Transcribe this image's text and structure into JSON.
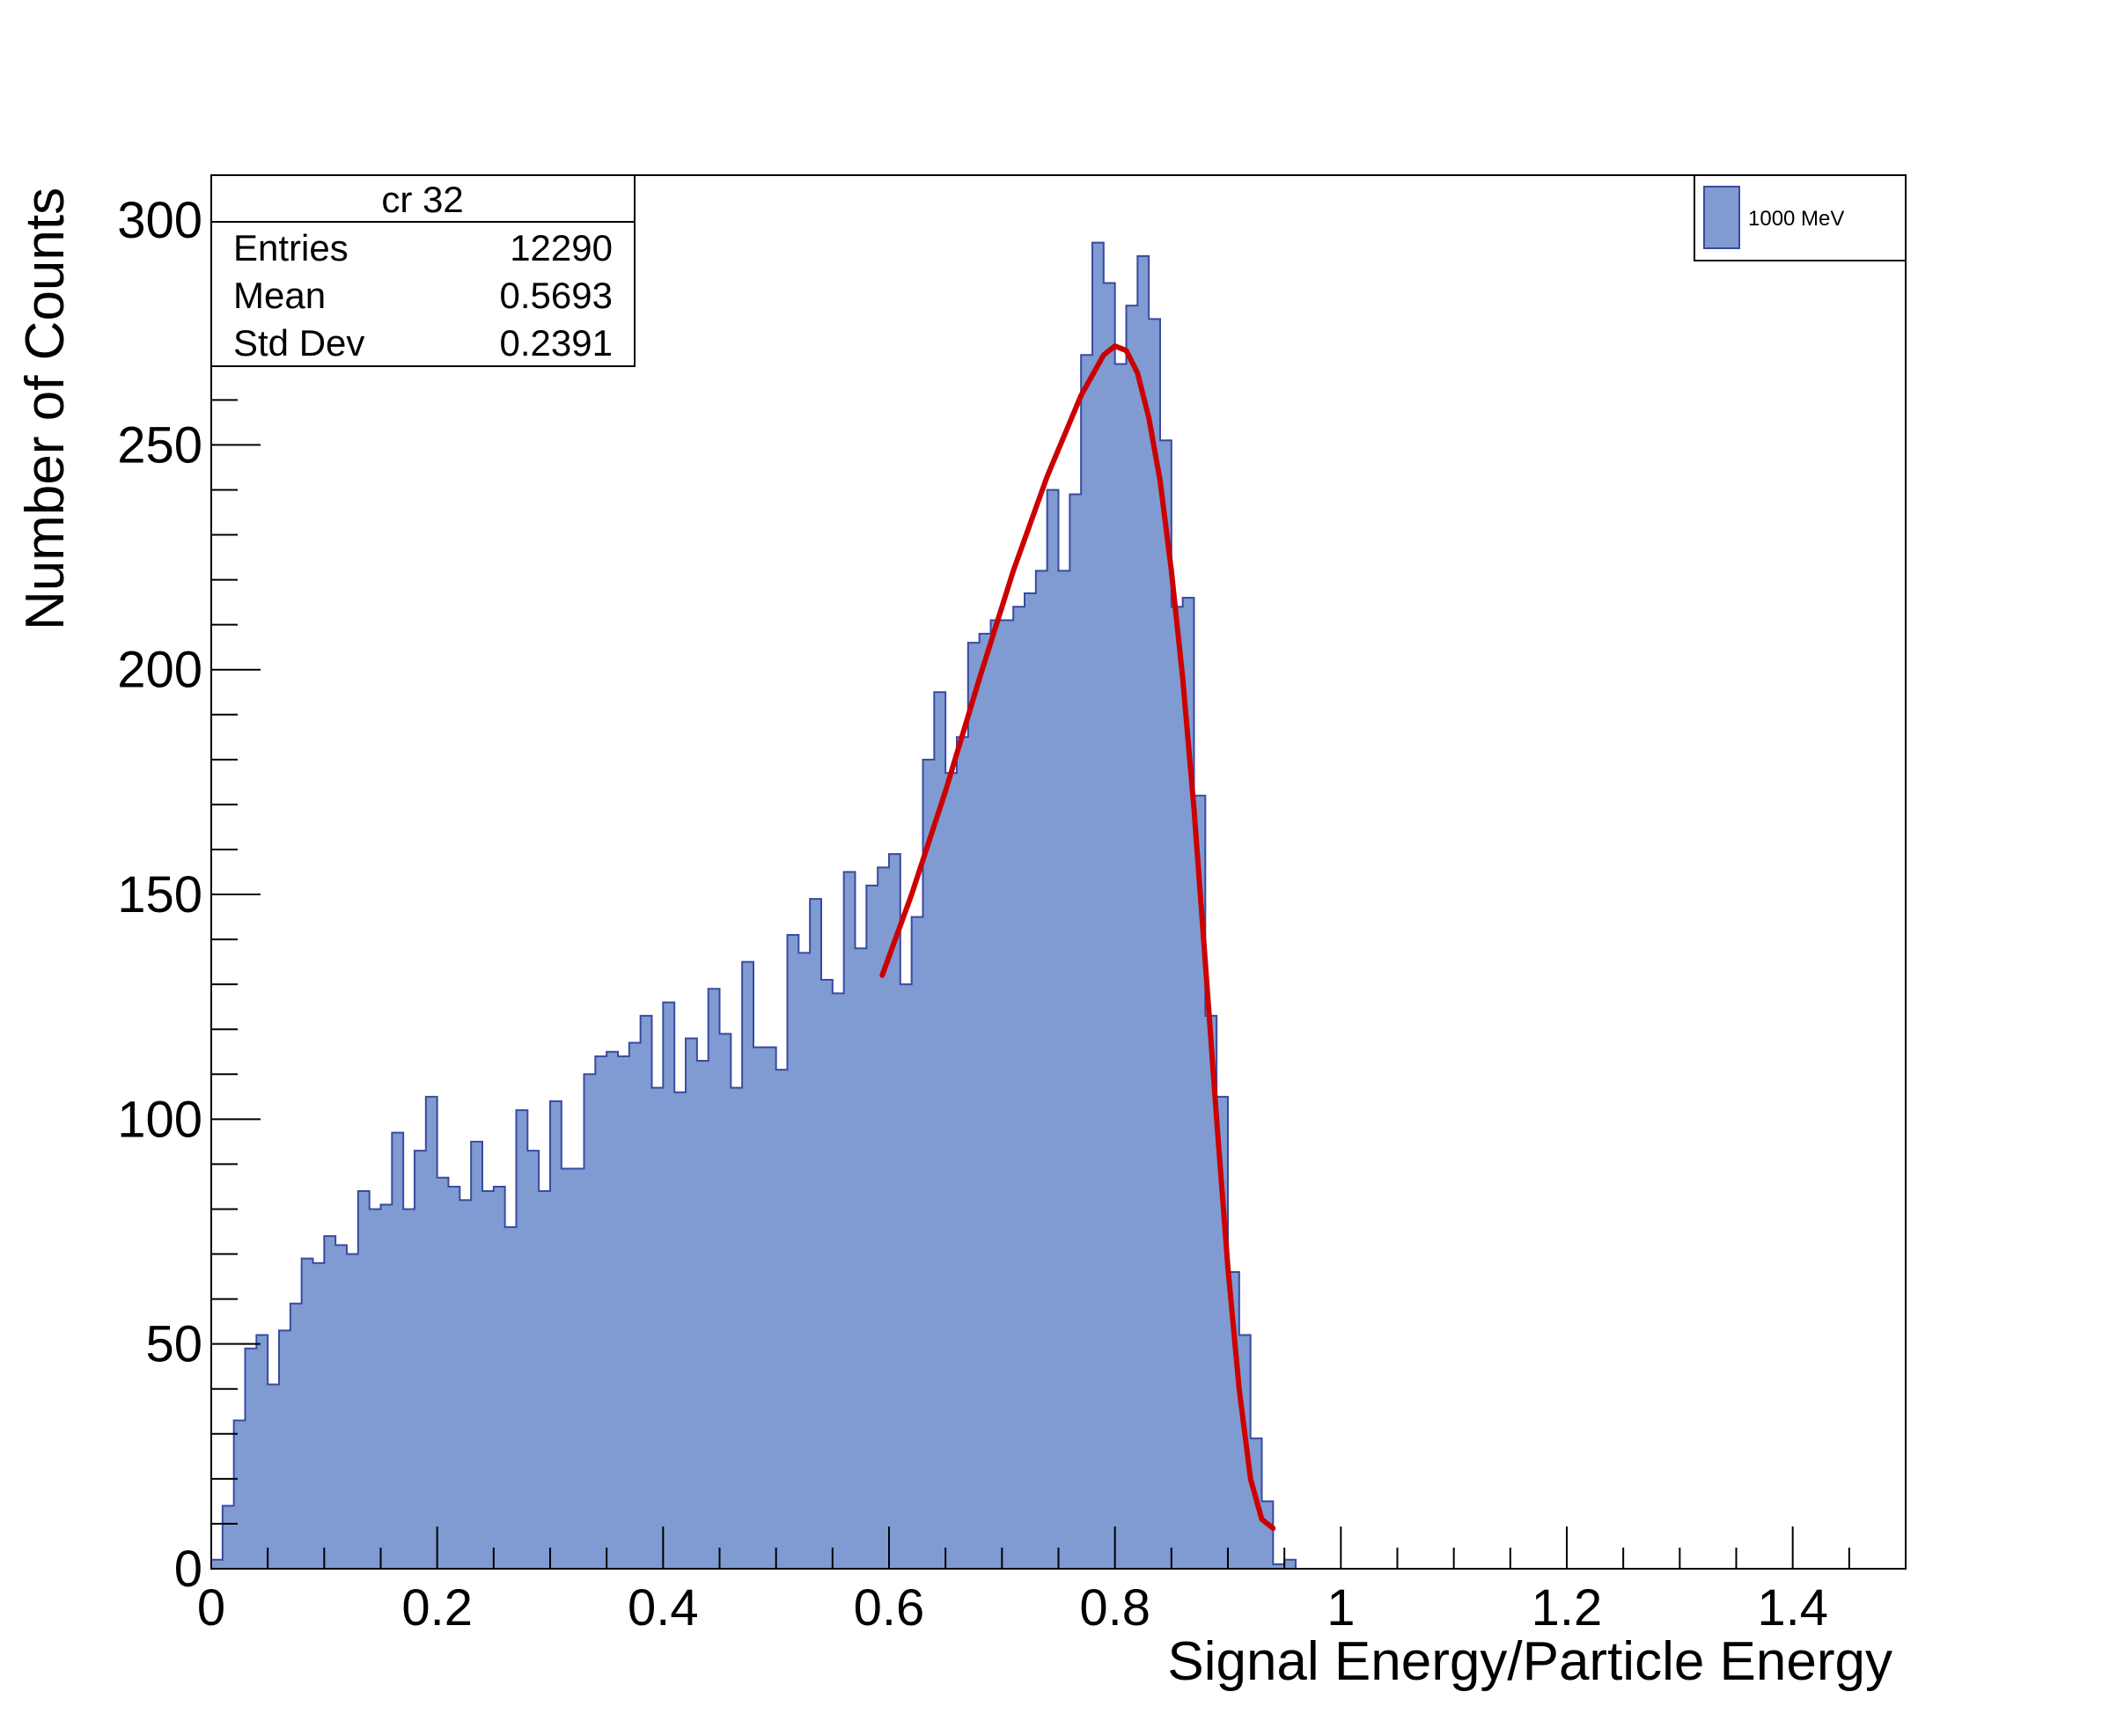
{
  "chart_data": {
    "type": "bar",
    "xlabel": "Signal Energy/Particle Energy",
    "ylabel": "Number of Counts",
    "xlim": [
      0,
      1.5
    ],
    "ylim": [
      0,
      310
    ],
    "x_ticks": [
      0,
      0.2,
      0.4,
      0.6,
      0.8,
      1,
      1.2,
      1.4
    ],
    "x_tick_labels": [
      "0",
      "0.2",
      "0.4",
      "0.6",
      "0.8",
      "1",
      "1.2",
      "1.4"
    ],
    "y_ticks": [
      0,
      50,
      100,
      150,
      200,
      250,
      300
    ],
    "y_tick_labels": [
      "0",
      "50",
      "100",
      "150",
      "200",
      "250",
      "300"
    ],
    "bin_width": 0.01,
    "bin_start": 0,
    "values": [
      2,
      14,
      33,
      49,
      52,
      41,
      53,
      59,
      69,
      68,
      74,
      72,
      70,
      84,
      80,
      81,
      97,
      80,
      93,
      105,
      87,
      85,
      82,
      95,
      84,
      85,
      76,
      102,
      93,
      84,
      104,
      89,
      89,
      110,
      114,
      115,
      114,
      117,
      123,
      107,
      126,
      106,
      118,
      113,
      129,
      119,
      107,
      135,
      116,
      116,
      111,
      141,
      137,
      149,
      131,
      128,
      155,
      138,
      152,
      156,
      159,
      130,
      145,
      180,
      195,
      177,
      185,
      206,
      208,
      211,
      211,
      214,
      217,
      222,
      240,
      222,
      239,
      270,
      295,
      286,
      268,
      281,
      292,
      278,
      251,
      214,
      216,
      172,
      123,
      105,
      66,
      52,
      29,
      15,
      1,
      2
    ],
    "series": [
      {
        "name": "1000 MeV",
        "color": "#7f9bd2",
        "edge_color": "#3a4aa0"
      }
    ],
    "fit": {
      "color": "#cc0000",
      "x": [
        0.594,
        0.62,
        0.65,
        0.68,
        0.71,
        0.74,
        0.77,
        0.79,
        0.8,
        0.81,
        0.82,
        0.83,
        0.84,
        0.85,
        0.86,
        0.87,
        0.88,
        0.89,
        0.9,
        0.91,
        0.92,
        0.93,
        0.94
      ],
      "y": [
        132,
        150,
        173,
        198,
        222,
        243,
        261,
        270,
        272,
        271,
        266,
        256,
        242,
        222,
        198,
        169,
        135,
        100,
        67,
        40,
        20,
        11,
        9
      ]
    },
    "stats_box": {
      "title": "cr 32",
      "rows": [
        {
          "label": "Entries",
          "value": "12290"
        },
        {
          "label": "Mean",
          "value": "0.5693"
        },
        {
          "label": "Std Dev",
          "value": "0.2391"
        }
      ]
    },
    "legend": {
      "position": "top-right",
      "label": "1000 MeV"
    }
  }
}
